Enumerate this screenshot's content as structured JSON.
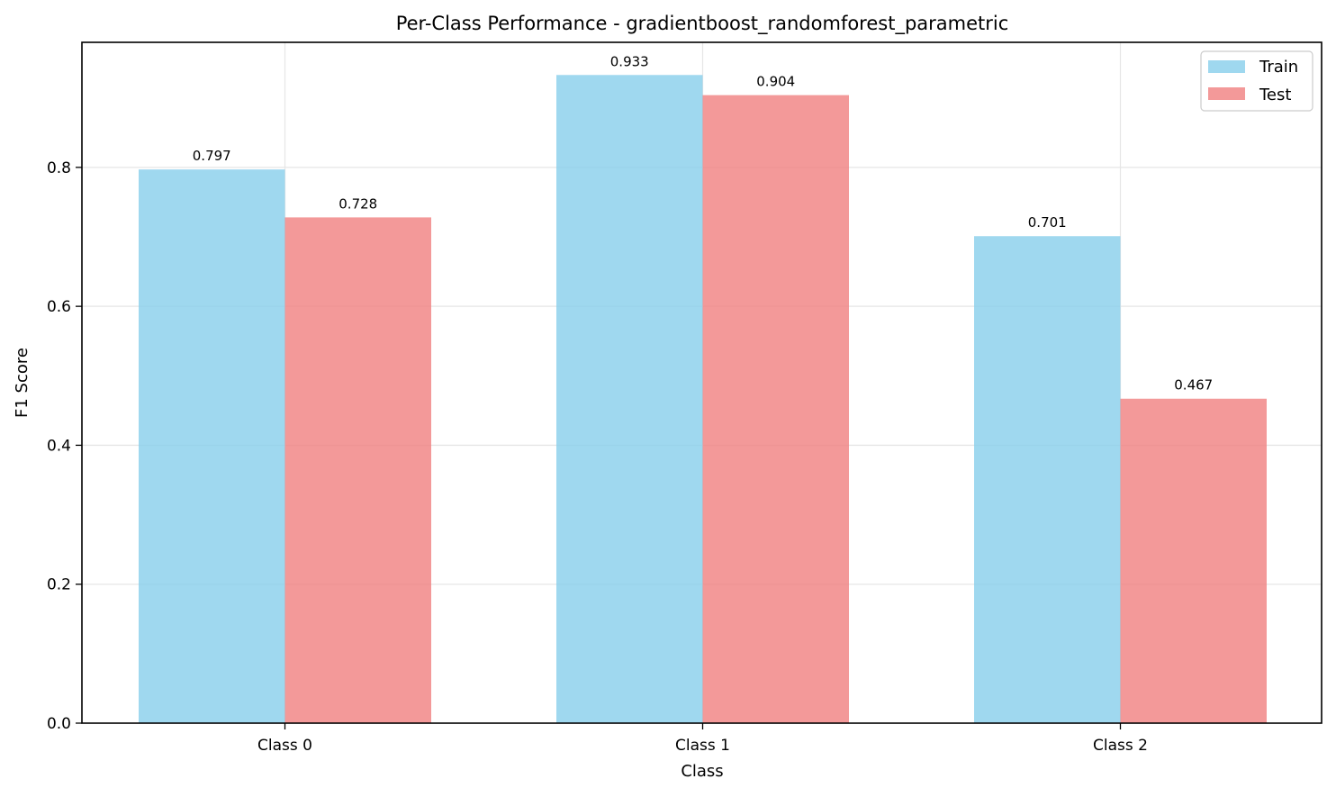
{
  "chart_data": {
    "type": "bar",
    "title": "Per-Class Performance - gradientboost_randomforest_parametric",
    "xlabel": "Class",
    "ylabel": "F1 Score",
    "categories": [
      "Class 0",
      "Class 1",
      "Class 2"
    ],
    "series": [
      {
        "name": "Train",
        "values": [
          0.797,
          0.933,
          0.701
        ],
        "labels": [
          "0.797",
          "0.933",
          "0.701"
        ],
        "color": "#87CEEB"
      },
      {
        "name": "Test",
        "values": [
          0.728,
          0.904,
          0.467
        ],
        "labels": [
          "0.728",
          "0.904",
          "0.467"
        ],
        "color": "#F08080"
      }
    ],
    "ylim": [
      0,
      0.98
    ],
    "yticks": [
      0.0,
      0.2,
      0.4,
      0.6,
      0.8
    ],
    "ytick_labels": [
      "0.0",
      "0.2",
      "0.4",
      "0.6",
      "0.8"
    ],
    "grid": true,
    "legend_position": "top-right"
  }
}
